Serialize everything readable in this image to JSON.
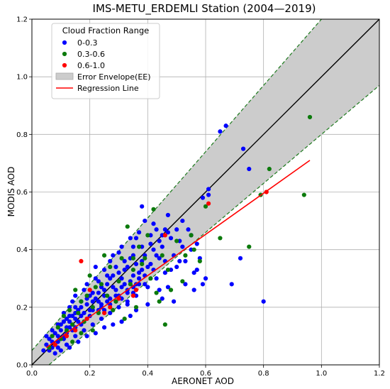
{
  "chart_data": {
    "type": "scatter",
    "title": "IMS-METU_ERDEMLI Station (2004—2019)",
    "xlabel": "AERONET AOD",
    "ylabel": "MODIS AOD",
    "xlim": [
      0.0,
      1.2
    ],
    "ylim": [
      0.0,
      1.2
    ],
    "xticks": [
      "0.0",
      "0.2",
      "0.4",
      "0.6",
      "0.8",
      "1.0",
      "1.2"
    ],
    "yticks": [
      "0.0",
      "0.2",
      "0.4",
      "0.6",
      "0.8",
      "1.0",
      "1.2"
    ],
    "grid": true,
    "legend": {
      "title": "Cloud Fraction Range",
      "placement": "top-left",
      "entries": [
        "0-0.3",
        "0.3-0.6",
        "0.6-1.0",
        "Error Envelope(EE)",
        "Regression Line"
      ]
    },
    "colors": {
      "series_0_0_3": "#0000ff",
      "series_0_3_0_6": "#0c7a0c",
      "series_0_6_1_0": "#ff0000",
      "envelope_fill": "#cccccc",
      "envelope_edge": "#1e7a1e",
      "one_to_one": "#000000",
      "regression": "#ff0000"
    },
    "envelope": {
      "lower": {
        "slope": 0.85,
        "intercept": -0.05
      },
      "upper": {
        "slope": 1.15,
        "intercept": 0.05
      }
    },
    "one_to_one_line": [
      [
        0.0,
        0.0
      ],
      [
        1.2,
        1.2
      ]
    ],
    "regression_line": [
      [
        0.05,
        0.06
      ],
      [
        0.96,
        0.71
      ]
    ],
    "series": [
      {
        "name": "0-0.3",
        "points": [
          [
            0.65,
            0.81
          ],
          [
            0.67,
            0.83
          ],
          [
            0.73,
            0.75
          ],
          [
            0.75,
            0.68
          ],
          [
            0.61,
            0.61
          ],
          [
            0.59,
            0.58
          ],
          [
            0.61,
            0.59
          ],
          [
            0.8,
            0.22
          ],
          [
            0.69,
            0.28
          ],
          [
            0.72,
            0.37
          ],
          [
            0.56,
            0.26
          ],
          [
            0.38,
            0.55
          ],
          [
            0.46,
            0.47
          ],
          [
            0.47,
            0.46
          ],
          [
            0.45,
            0.45
          ],
          [
            0.51,
            0.43
          ],
          [
            0.52,
            0.41
          ],
          [
            0.55,
            0.4
          ],
          [
            0.57,
            0.42
          ],
          [
            0.49,
            0.38
          ],
          [
            0.51,
            0.36
          ],
          [
            0.48,
            0.33
          ],
          [
            0.47,
            0.27
          ],
          [
            0.44,
            0.26
          ],
          [
            0.53,
            0.28
          ],
          [
            0.42,
            0.49
          ],
          [
            0.39,
            0.5
          ],
          [
            0.41,
            0.42
          ],
          [
            0.36,
            0.44
          ],
          [
            0.35,
            0.41
          ],
          [
            0.34,
            0.37
          ],
          [
            0.38,
            0.36
          ],
          [
            0.37,
            0.3
          ],
          [
            0.39,
            0.28
          ],
          [
            0.35,
            0.25
          ],
          [
            0.32,
            0.33
          ],
          [
            0.31,
            0.3
          ],
          [
            0.3,
            0.39
          ],
          [
            0.33,
            0.21
          ],
          [
            0.29,
            0.26
          ],
          [
            0.28,
            0.31
          ],
          [
            0.27,
            0.36
          ],
          [
            0.26,
            0.28
          ],
          [
            0.25,
            0.24
          ],
          [
            0.24,
            0.21
          ],
          [
            0.23,
            0.29
          ],
          [
            0.22,
            0.34
          ],
          [
            0.21,
            0.25
          ],
          [
            0.2,
            0.19
          ],
          [
            0.19,
            0.23
          ],
          [
            0.18,
            0.26
          ],
          [
            0.17,
            0.2
          ],
          [
            0.16,
            0.15
          ],
          [
            0.15,
            0.18
          ],
          [
            0.14,
            0.22
          ],
          [
            0.13,
            0.13
          ],
          [
            0.12,
            0.16
          ],
          [
            0.11,
            0.1
          ],
          [
            0.1,
            0.12
          ],
          [
            0.09,
            0.08
          ],
          [
            0.08,
            0.11
          ],
          [
            0.07,
            0.06
          ],
          [
            0.06,
            0.09
          ],
          [
            0.05,
            0.07
          ],
          [
            0.04,
            0.05
          ],
          [
            0.08,
            0.04
          ],
          [
            0.12,
            0.07
          ],
          [
            0.15,
            0.1
          ],
          [
            0.18,
            0.12
          ],
          [
            0.21,
            0.14
          ],
          [
            0.24,
            0.16
          ],
          [
            0.27,
            0.18
          ],
          [
            0.3,
            0.2
          ],
          [
            0.33,
            0.22
          ],
          [
            0.36,
            0.24
          ],
          [
            0.4,
            0.27
          ],
          [
            0.43,
            0.3
          ],
          [
            0.46,
            0.32
          ],
          [
            0.5,
            0.34
          ],
          [
            0.44,
            0.37
          ],
          [
            0.41,
            0.35
          ],
          [
            0.38,
            0.33
          ],
          [
            0.35,
            0.31
          ],
          [
            0.32,
            0.28
          ],
          [
            0.29,
            0.24
          ],
          [
            0.26,
            0.22
          ],
          [
            0.23,
            0.19
          ],
          [
            0.2,
            0.17
          ],
          [
            0.17,
            0.14
          ],
          [
            0.14,
            0.12
          ],
          [
            0.11,
            0.09
          ],
          [
            0.09,
            0.1
          ],
          [
            0.13,
            0.15
          ],
          [
            0.16,
            0.19
          ],
          [
            0.19,
            0.21
          ],
          [
            0.22,
            0.23
          ],
          [
            0.25,
            0.26
          ],
          [
            0.28,
            0.27
          ],
          [
            0.31,
            0.27
          ],
          [
            0.34,
            0.29
          ],
          [
            0.37,
            0.32
          ],
          [
            0.4,
            0.34
          ],
          [
            0.43,
            0.38
          ],
          [
            0.45,
            0.41
          ],
          [
            0.42,
            0.4
          ],
          [
            0.39,
            0.38
          ],
          [
            0.36,
            0.35
          ],
          [
            0.33,
            0.34
          ],
          [
            0.3,
            0.32
          ],
          [
            0.27,
            0.3
          ],
          [
            0.24,
            0.27
          ],
          [
            0.21,
            0.22
          ],
          [
            0.18,
            0.18
          ],
          [
            0.15,
            0.16
          ],
          [
            0.12,
            0.13
          ],
          [
            0.1,
            0.14
          ],
          [
            0.14,
            0.17
          ],
          [
            0.17,
            0.22
          ],
          [
            0.2,
            0.24
          ],
          [
            0.23,
            0.25
          ],
          [
            0.26,
            0.31
          ],
          [
            0.29,
            0.34
          ],
          [
            0.32,
            0.36
          ],
          [
            0.35,
            0.38
          ],
          [
            0.38,
            0.41
          ],
          [
            0.41,
            0.45
          ],
          [
            0.44,
            0.43
          ],
          [
            0.48,
            0.44
          ],
          [
            0.5,
            0.47
          ],
          [
            0.53,
            0.36
          ],
          [
            0.56,
            0.32
          ],
          [
            0.6,
            0.3
          ],
          [
            0.58,
            0.37
          ],
          [
            0.49,
            0.22
          ],
          [
            0.45,
            0.23
          ],
          [
            0.4,
            0.21
          ],
          [
            0.36,
            0.19
          ],
          [
            0.34,
            0.17
          ],
          [
            0.31,
            0.15
          ],
          [
            0.28,
            0.14
          ],
          [
            0.25,
            0.13
          ],
          [
            0.22,
            0.11
          ],
          [
            0.19,
            0.1
          ],
          [
            0.16,
            0.08
          ],
          [
            0.13,
            0.06
          ],
          [
            0.1,
            0.05
          ],
          [
            0.07,
            0.08
          ],
          [
            0.11,
            0.18
          ],
          [
            0.13,
            0.2
          ],
          [
            0.15,
            0.24
          ],
          [
            0.19,
            0.28
          ],
          [
            0.22,
            0.3
          ],
          [
            0.25,
            0.33
          ],
          [
            0.28,
            0.38
          ],
          [
            0.31,
            0.41
          ],
          [
            0.34,
            0.44
          ],
          [
            0.37,
            0.46
          ],
          [
            0.43,
            0.47
          ],
          [
            0.46,
            0.36
          ],
          [
            0.42,
            0.33
          ],
          [
            0.39,
            0.31
          ],
          [
            0.36,
            0.28
          ],
          [
            0.33,
            0.26
          ],
          [
            0.3,
            0.24
          ],
          [
            0.27,
            0.23
          ],
          [
            0.24,
            0.2
          ],
          [
            0.21,
            0.19
          ],
          [
            0.18,
            0.15
          ],
          [
            0.15,
            0.13
          ],
          [
            0.12,
            0.11
          ],
          [
            0.09,
            0.06
          ],
          [
            0.06,
            0.05
          ],
          [
            0.05,
            0.1
          ],
          [
            0.07,
            0.12
          ],
          [
            0.09,
            0.14
          ],
          [
            0.11,
            0.15
          ],
          [
            0.13,
            0.17
          ],
          [
            0.15,
            0.2
          ],
          [
            0.17,
            0.17
          ],
          [
            0.19,
            0.16
          ],
          [
            0.21,
            0.2
          ],
          [
            0.23,
            0.22
          ],
          [
            0.25,
            0.19
          ],
          [
            0.27,
            0.21
          ],
          [
            0.29,
            0.22
          ],
          [
            0.31,
            0.23
          ],
          [
            0.33,
            0.25
          ],
          [
            0.35,
            0.27
          ],
          [
            0.37,
            0.28
          ],
          [
            0.54,
            0.47
          ],
          [
            0.52,
            0.5
          ],
          [
            0.47,
            0.52
          ],
          [
            0.55,
            0.45
          ],
          [
            0.57,
            0.33
          ],
          [
            0.59,
            0.28
          ]
        ]
      },
      {
        "name": "0.3-0.6",
        "points": [
          [
            0.96,
            0.86
          ],
          [
            0.82,
            0.68
          ],
          [
            0.94,
            0.59
          ],
          [
            0.79,
            0.59
          ],
          [
            0.75,
            0.41
          ],
          [
            0.65,
            0.44
          ],
          [
            0.6,
            0.55
          ],
          [
            0.58,
            0.36
          ],
          [
            0.55,
            0.45
          ],
          [
            0.53,
            0.38
          ],
          [
            0.52,
            0.29
          ],
          [
            0.5,
            0.43
          ],
          [
            0.47,
            0.33
          ],
          [
            0.45,
            0.38
          ],
          [
            0.46,
            0.14
          ],
          [
            0.43,
            0.25
          ],
          [
            0.41,
            0.3
          ],
          [
            0.4,
            0.45
          ],
          [
            0.39,
            0.37
          ],
          [
            0.37,
            0.41
          ],
          [
            0.35,
            0.33
          ],
          [
            0.34,
            0.28
          ],
          [
            0.33,
            0.48
          ],
          [
            0.31,
            0.37
          ],
          [
            0.3,
            0.29
          ],
          [
            0.29,
            0.22
          ],
          [
            0.27,
            0.34
          ],
          [
            0.26,
            0.24
          ],
          [
            0.25,
            0.38
          ],
          [
            0.24,
            0.28
          ],
          [
            0.23,
            0.18
          ],
          [
            0.22,
            0.27
          ],
          [
            0.21,
            0.2
          ],
          [
            0.2,
            0.31
          ],
          [
            0.19,
            0.24
          ],
          [
            0.18,
            0.15
          ],
          [
            0.17,
            0.22
          ],
          [
            0.16,
            0.18
          ],
          [
            0.15,
            0.26
          ],
          [
            0.14,
            0.14
          ],
          [
            0.13,
            0.19
          ],
          [
            0.12,
            0.12
          ],
          [
            0.11,
            0.17
          ],
          [
            0.1,
            0.09
          ],
          [
            0.09,
            0.13
          ],
          [
            0.08,
            0.07
          ],
          [
            0.07,
            0.1
          ],
          [
            0.06,
            0.06
          ],
          [
            0.42,
            0.54
          ],
          [
            0.44,
            0.22
          ],
          [
            0.48,
            0.26
          ],
          [
            0.56,
            0.4
          ],
          [
            0.36,
            0.2
          ],
          [
            0.32,
            0.16
          ],
          [
            0.28,
            0.19
          ],
          [
            0.21,
            0.12
          ],
          [
            0.17,
            0.11
          ],
          [
            0.14,
            0.08
          ],
          [
            0.38,
            0.35
          ],
          [
            0.35,
            0.37
          ]
        ]
      },
      {
        "name": "0.6-1.0",
        "points": [
          [
            0.81,
            0.6
          ],
          [
            0.61,
            0.56
          ],
          [
            0.17,
            0.36
          ],
          [
            0.46,
            0.45
          ],
          [
            0.36,
            0.26
          ],
          [
            0.27,
            0.2
          ],
          [
            0.25,
            0.18
          ],
          [
            0.3,
            0.23
          ],
          [
            0.2,
            0.26
          ],
          [
            0.19,
            0.16
          ],
          [
            0.15,
            0.12
          ],
          [
            0.12,
            0.1
          ],
          [
            0.08,
            0.07
          ],
          [
            0.35,
            0.24
          ]
        ]
      }
    ]
  }
}
